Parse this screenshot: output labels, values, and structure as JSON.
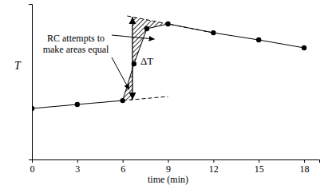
{
  "chart_data": {
    "type": "line",
    "xlabel": "time (min)",
    "ylabel": "T",
    "xlim": [
      0,
      19
    ],
    "xticks": [
      0,
      3,
      6,
      9,
      12,
      15,
      18
    ],
    "ylim": [
      0,
      100
    ],
    "yticks": [],
    "tick_labels": "x",
    "series": [
      {
        "x": [
          0,
          3,
          6,
          6.75,
          7.6,
          9,
          12,
          15,
          18
        ],
        "values": [
          32.8,
          35.4,
          37.9,
          61.5,
          84.1,
          87.2,
          81.5,
          76.9,
          71.8
        ],
        "color": "#000000",
        "marker": "circle",
        "line_style": "solid"
      },
      {
        "x": [
          6,
          9
        ],
        "values": [
          37.9,
          40.5
        ],
        "color": "#000000",
        "marker": "none",
        "line_style": "dashed"
      },
      {
        "x": [
          6.3,
          12
        ],
        "values": [
          92.3,
          81.5
        ],
        "color": "#000000",
        "marker": "none",
        "line_style": "dashed"
      }
    ],
    "delta_t": {
      "x": 6.65,
      "y": [
        38.5,
        91.7
      ],
      "label": "ΔT"
    },
    "annotation": {
      "text": [
        "RC attempts to",
        "make areas equal"
      ]
    }
  }
}
